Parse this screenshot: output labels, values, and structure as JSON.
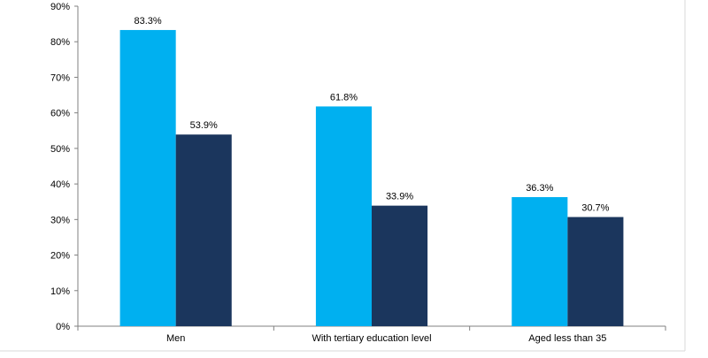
{
  "chart_data": {
    "type": "bar",
    "title": "",
    "xlabel": "",
    "ylabel": "",
    "categories": [
      "Men",
      "With tertiary education level",
      "Aged less than 35"
    ],
    "series": [
      {
        "values": [
          83.3,
          61.8,
          36.3
        ],
        "labels": [
          "83.3%",
          "61.8%",
          "36.3%"
        ],
        "color": "#00B0F0"
      },
      {
        "values": [
          53.9,
          33.9,
          30.7
        ],
        "labels": [
          "53.9%",
          "33.9%",
          "30.7%"
        ],
        "color": "#1B365D"
      }
    ],
    "ylim": [
      0,
      90
    ],
    "yticks": [
      0,
      10,
      20,
      30,
      40,
      50,
      60,
      70,
      80,
      90
    ],
    "ytick_labels": [
      "0%",
      "10%",
      "20%",
      "30%",
      "40%",
      "50%",
      "60%",
      "70%",
      "80%",
      "90%"
    ],
    "grid": false,
    "legend": "none"
  }
}
